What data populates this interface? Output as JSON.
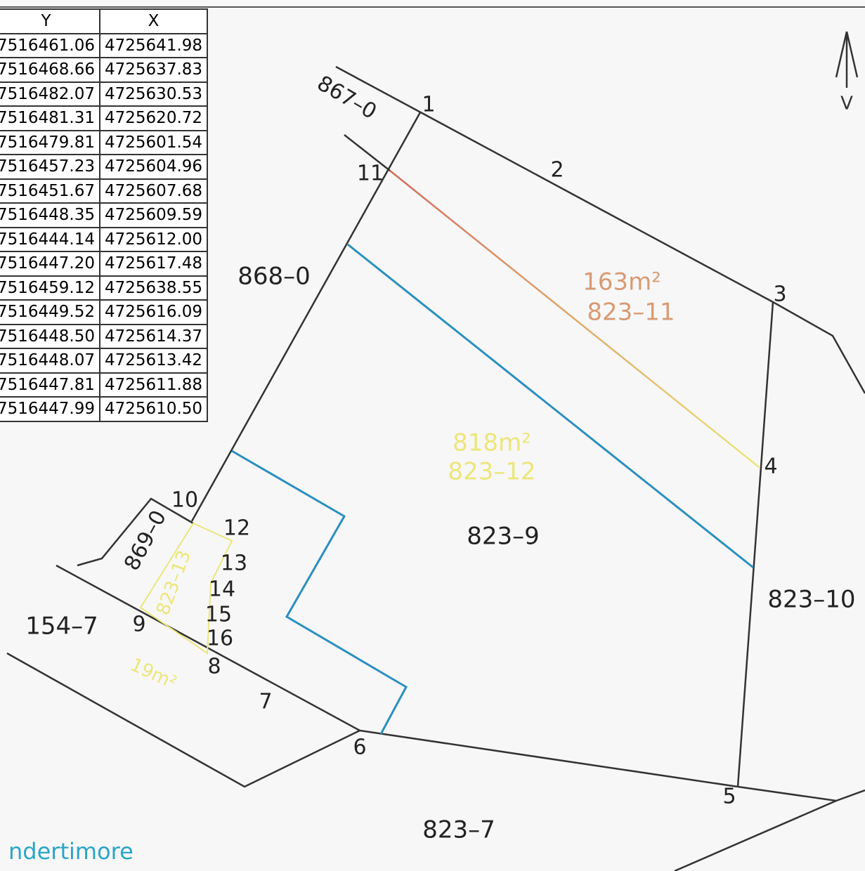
{
  "table": {
    "header": [
      "Y",
      "X"
    ],
    "rows": [
      [
        "7516461.06",
        "4725641.98"
      ],
      [
        "7516468.66",
        "4725637.83"
      ],
      [
        "7516482.07",
        "4725630.53"
      ],
      [
        "7516481.31",
        "4725620.72"
      ],
      [
        "7516479.81",
        "4725601.54"
      ],
      [
        "7516457.23",
        "4725604.96"
      ],
      [
        "7516451.67",
        "4725607.68"
      ],
      [
        "7516448.35",
        "4725609.59"
      ],
      [
        "7516444.14",
        "4725612.00"
      ],
      [
        "7516447.20",
        "4725617.48"
      ],
      [
        "7516459.12",
        "4725638.55"
      ],
      [
        "7516449.52",
        "4725616.09"
      ],
      [
        "7516448.50",
        "4725614.37"
      ],
      [
        "7516448.07",
        "4725613.42"
      ],
      [
        "7516447.81",
        "4725611.88"
      ],
      [
        "7516447.99",
        "4725610.50"
      ]
    ]
  },
  "points": [
    "1",
    "2",
    "3",
    "4",
    "5",
    "6",
    "7",
    "8",
    "9",
    "10",
    "11",
    "12",
    "13",
    "14",
    "15",
    "16"
  ],
  "parcels": [
    "867–0",
    "868–0",
    "869–0",
    "154–7",
    "823–9",
    "823–10",
    "823–7"
  ],
  "new_parcels": [
    {
      "area": "163m²",
      "id": "823–11"
    },
    {
      "area": "818m²",
      "id": "823–12"
    },
    {
      "area": "19m²",
      "id": "823–13"
    }
  ],
  "north": "V",
  "footer": "ndertimore"
}
